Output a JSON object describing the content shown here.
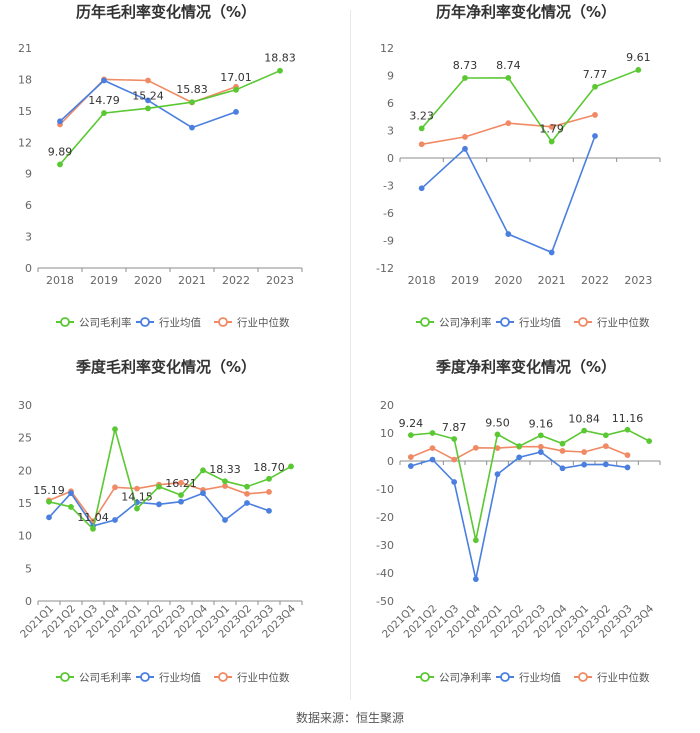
{
  "footer": {
    "source": "数据来源：恒生聚源"
  },
  "colors": {
    "company": "#5ac832",
    "industry_avg": "#4a7fe0",
    "industry_median": "#f08a64"
  },
  "chart_data": [
    {
      "type": "line",
      "title": "历年毛利率变化情况（%）",
      "categories": [
        "2018",
        "2019",
        "2020",
        "2021",
        "2022",
        "2023"
      ],
      "ylim": [
        0,
        21
      ],
      "yticks": [
        0,
        3,
        6,
        9,
        12,
        15,
        18,
        21
      ],
      "grid": false,
      "legend_position": "bottom",
      "series": [
        {
          "name": "公司毛利率",
          "color": "#5ac832",
          "values": [
            9.89,
            14.79,
            15.24,
            15.83,
            17.01,
            18.83
          ],
          "labels": [
            "9.89",
            "14.79",
            "15.24",
            "15.83",
            "17.01",
            "18.83"
          ]
        },
        {
          "name": "行业均值",
          "color": "#4a7fe0",
          "values": [
            14.0,
            17.9,
            16.0,
            13.4,
            14.9,
            null
          ]
        },
        {
          "name": "行业中位数",
          "color": "#f08a64",
          "values": [
            13.7,
            18.0,
            17.9,
            15.8,
            17.3,
            null
          ]
        }
      ]
    },
    {
      "type": "line",
      "title": "历年净利率变化情况（%）",
      "categories": [
        "2018",
        "2019",
        "2020",
        "2021",
        "2022",
        "2023"
      ],
      "ylim": [
        -12,
        12
      ],
      "yticks": [
        -12,
        -9,
        -6,
        -3,
        0,
        3,
        6,
        9,
        12
      ],
      "grid": false,
      "legend_position": "bottom",
      "series": [
        {
          "name": "公司净利率",
          "color": "#5ac832",
          "values": [
            3.23,
            8.73,
            8.74,
            1.79,
            7.77,
            9.61
          ],
          "labels": [
            "3.23",
            "8.73",
            "8.74",
            "1.79",
            "7.77",
            "9.61"
          ]
        },
        {
          "name": "行业均值",
          "color": "#4a7fe0",
          "values": [
            -3.3,
            1.0,
            -8.3,
            -10.3,
            2.4,
            null
          ]
        },
        {
          "name": "行业中位数",
          "color": "#f08a64",
          "values": [
            1.5,
            2.3,
            3.8,
            3.4,
            4.7,
            null
          ]
        }
      ]
    },
    {
      "type": "line",
      "title": "季度毛利率变化情况（%）",
      "categories": [
        "2021Q1",
        "2021Q2",
        "2021Q3",
        "2021Q4",
        "2022Q1",
        "2022Q2",
        "2022Q3",
        "2022Q4",
        "2023Q1",
        "2023Q2",
        "2023Q3",
        "2023Q4"
      ],
      "ylim": [
        0,
        30
      ],
      "yticks": [
        0,
        5,
        10,
        15,
        20,
        25,
        30
      ],
      "grid": false,
      "legend_position": "bottom",
      "series": [
        {
          "name": "公司毛利率",
          "color": "#5ac832",
          "values": [
            15.19,
            14.4,
            11.04,
            26.3,
            14.15,
            17.5,
            16.21,
            20.0,
            18.33,
            17.5,
            18.7,
            20.6
          ],
          "labels": [
            "15.19",
            "",
            "11.04",
            "",
            "14.15",
            "",
            "16.21",
            "",
            "18.33",
            "",
            "18.70",
            ""
          ]
        },
        {
          "name": "行业均值",
          "color": "#4a7fe0",
          "values": [
            12.8,
            16.5,
            11.5,
            12.4,
            15.1,
            14.8,
            15.2,
            16.5,
            12.4,
            15.0,
            13.8,
            null
          ]
        },
        {
          "name": "行业中位数",
          "color": "#f08a64",
          "values": [
            15.4,
            16.8,
            12.2,
            17.4,
            17.2,
            17.8,
            18.1,
            17.0,
            17.6,
            16.4,
            16.7,
            null
          ]
        }
      ]
    },
    {
      "type": "line",
      "title": "季度净利率变化情况（%）",
      "categories": [
        "2021Q1",
        "2021Q2",
        "2021Q3",
        "2021Q4",
        "2022Q1",
        "2022Q2",
        "2022Q3",
        "2022Q4",
        "2023Q1",
        "2023Q2",
        "2023Q3",
        "2023Q4"
      ],
      "ylim": [
        -50,
        20
      ],
      "yticks": [
        -50,
        -40,
        -30,
        -20,
        -10,
        0,
        10,
        20
      ],
      "grid": false,
      "legend_position": "bottom",
      "series": [
        {
          "name": "公司净利率",
          "color": "#5ac832",
          "values": [
            9.24,
            10.0,
            7.87,
            -28.3,
            9.5,
            5.3,
            9.16,
            6.2,
            10.84,
            9.2,
            11.16,
            7.1
          ],
          "labels": [
            "9.24",
            "",
            "7.87",
            "",
            "9.50",
            "",
            "9.16",
            "",
            "10.84",
            "",
            "11.16",
            ""
          ]
        },
        {
          "name": "行业均值",
          "color": "#4a7fe0",
          "values": [
            -1.8,
            0.5,
            -7.5,
            -42.2,
            -4.7,
            1.3,
            3.2,
            -2.6,
            -1.3,
            -1.2,
            -2.3,
            null
          ]
        },
        {
          "name": "行业中位数",
          "color": "#f08a64",
          "values": [
            1.4,
            4.6,
            0.5,
            4.7,
            4.6,
            5.1,
            5.1,
            3.6,
            3.2,
            5.3,
            2.1,
            null
          ]
        }
      ]
    }
  ]
}
